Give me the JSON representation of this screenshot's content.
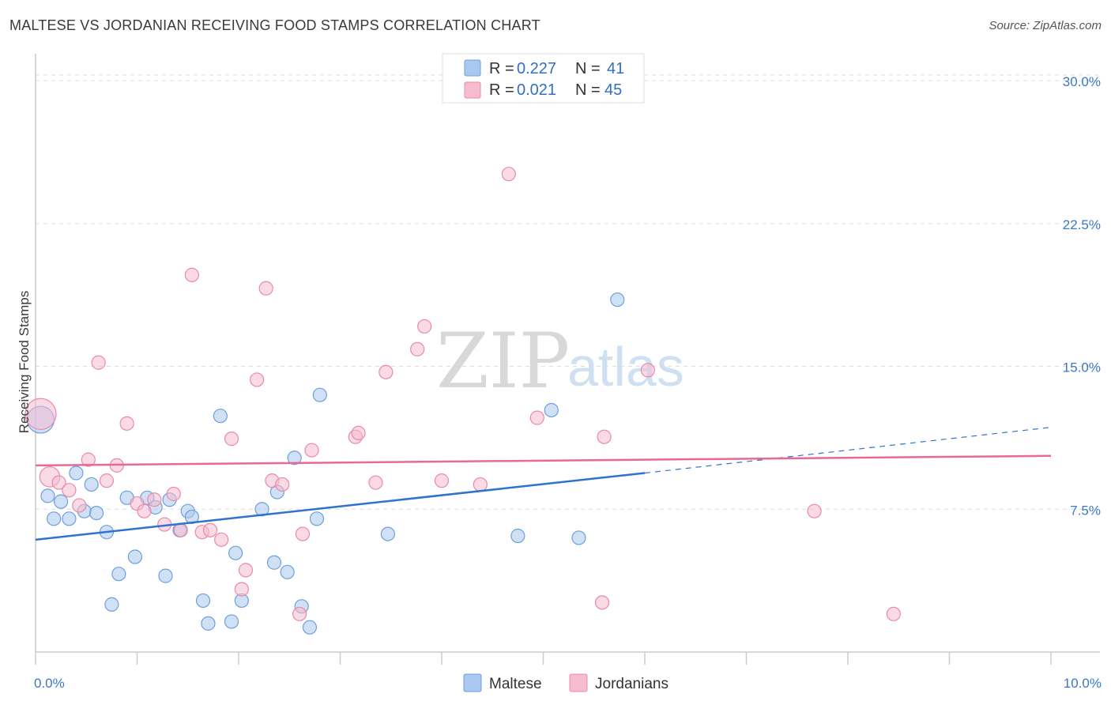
{
  "title": "MALTESE VS JORDANIAN RECEIVING FOOD STAMPS CORRELATION CHART",
  "source": "Source: ZipAtlas.com",
  "watermark": {
    "zip": "ZIP",
    "atlas": "atlas"
  },
  "colors": {
    "maltese_fill": "#a9c8ef",
    "maltese_stroke": "#6e9fdc",
    "maltese_line": "#2f73d0",
    "jordanian_fill": "#f6bccd",
    "jordanian_stroke": "#e98aa8",
    "jordanian_line": "#e86a93",
    "tick_text": "#3b78c6",
    "grid": "#dddddd"
  },
  "legend": {
    "rows": [
      {
        "r_label": "R =",
        "r_value": "0.227",
        "n_label": "N =",
        "n_value": "41"
      },
      {
        "r_label": "R =",
        "r_value": "0.021",
        "n_label": "N =",
        "n_value": "45"
      }
    ]
  },
  "bottom_legend": {
    "maltese": "Maltese",
    "jordanians": "Jordanians"
  },
  "chart_data": {
    "type": "scatter",
    "title": "MALTESE VS JORDANIAN RECEIVING FOOD STAMPS CORRELATION CHART",
    "xlabel": "",
    "ylabel": "Receiving Food Stamps",
    "xlim": [
      0,
      10
    ],
    "ylim": [
      0,
      31
    ],
    "x_tick_labels": [
      {
        "value": 0,
        "label": "0.0%"
      },
      {
        "value": 10,
        "label": "10.0%"
      }
    ],
    "y_tick_labels": [
      {
        "value": 7.5,
        "label": "7.5%"
      },
      {
        "value": 15,
        "label": "15.0%"
      },
      {
        "value": 22.5,
        "label": "22.5%"
      },
      {
        "value": 30,
        "label": "30.0%"
      }
    ],
    "series": [
      {
        "name": "Maltese",
        "r": 0.227,
        "n": 41,
        "trend": {
          "x0": 0,
          "y0": 5.9,
          "x1": 6.0,
          "y1": 9.4,
          "dash_x1": 10,
          "dash_y1": 11.8
        },
        "points": [
          [
            0.05,
            12.2,
            2.0
          ],
          [
            0.12,
            8.2,
            1
          ],
          [
            0.18,
            7.0,
            1
          ],
          [
            0.25,
            7.9,
            1
          ],
          [
            0.33,
            7.0,
            1
          ],
          [
            0.4,
            9.4,
            1
          ],
          [
            0.48,
            7.4,
            1
          ],
          [
            0.55,
            8.8,
            1
          ],
          [
            0.6,
            7.3,
            1
          ],
          [
            0.7,
            6.3,
            1
          ],
          [
            0.75,
            2.5,
            1
          ],
          [
            0.82,
            4.1,
            1
          ],
          [
            0.9,
            8.1,
            1
          ],
          [
            0.98,
            5.0,
            1
          ],
          [
            1.1,
            8.1,
            1
          ],
          [
            1.18,
            7.6,
            1
          ],
          [
            1.28,
            4.0,
            1
          ],
          [
            1.32,
            8.0,
            1
          ],
          [
            1.42,
            6.4,
            1
          ],
          [
            1.5,
            7.4,
            1
          ],
          [
            1.54,
            7.1,
            1
          ],
          [
            1.65,
            2.7,
            1
          ],
          [
            1.7,
            1.5,
            1
          ],
          [
            1.82,
            12.4,
            1
          ],
          [
            1.93,
            1.6,
            1
          ],
          [
            1.97,
            5.2,
            1
          ],
          [
            2.03,
            2.7,
            1
          ],
          [
            2.23,
            7.5,
            1
          ],
          [
            2.35,
            4.7,
            1
          ],
          [
            2.38,
            8.4,
            1
          ],
          [
            2.48,
            4.2,
            1
          ],
          [
            2.55,
            10.2,
            1
          ],
          [
            2.62,
            2.4,
            1
          ],
          [
            2.7,
            1.3,
            1
          ],
          [
            2.77,
            7.0,
            1
          ],
          [
            2.8,
            13.5,
            1
          ],
          [
            3.47,
            6.2,
            1
          ],
          [
            4.75,
            6.1,
            1
          ],
          [
            5.08,
            12.7,
            1
          ],
          [
            5.35,
            6.0,
            1
          ],
          [
            5.73,
            18.5,
            1
          ]
        ]
      },
      {
        "name": "Jordanians",
        "r": 0.021,
        "n": 45,
        "trend": {
          "x0": 0,
          "y0": 9.8,
          "x1": 10,
          "y1": 10.3
        },
        "points": [
          [
            0.05,
            12.5,
            2.3
          ],
          [
            0.14,
            9.2,
            1.5
          ],
          [
            0.23,
            8.9,
            1
          ],
          [
            0.33,
            8.5,
            1
          ],
          [
            0.43,
            7.7,
            1
          ],
          [
            0.52,
            10.1,
            1
          ],
          [
            0.62,
            15.2,
            1
          ],
          [
            0.7,
            9.0,
            1
          ],
          [
            0.8,
            9.8,
            1
          ],
          [
            0.9,
            12.0,
            1
          ],
          [
            1.0,
            7.8,
            1
          ],
          [
            1.07,
            7.4,
            1
          ],
          [
            1.17,
            8.0,
            1
          ],
          [
            1.27,
            6.7,
            1
          ],
          [
            1.36,
            8.3,
            1
          ],
          [
            1.43,
            6.4,
            1
          ],
          [
            1.54,
            19.8,
            1
          ],
          [
            1.64,
            6.3,
            1
          ],
          [
            1.72,
            6.4,
            1
          ],
          [
            1.83,
            5.9,
            1
          ],
          [
            1.93,
            11.2,
            1
          ],
          [
            2.03,
            3.3,
            1
          ],
          [
            2.07,
            4.3,
            1
          ],
          [
            2.18,
            14.3,
            1
          ],
          [
            2.27,
            19.1,
            1
          ],
          [
            2.33,
            9.0,
            1
          ],
          [
            2.43,
            8.8,
            1
          ],
          [
            2.6,
            2.0,
            1
          ],
          [
            2.63,
            6.2,
            1
          ],
          [
            2.72,
            10.6,
            1
          ],
          [
            3.15,
            11.3,
            1
          ],
          [
            3.18,
            11.5,
            1
          ],
          [
            3.35,
            8.9,
            1
          ],
          [
            3.45,
            14.7,
            1
          ],
          [
            3.76,
            15.9,
            1
          ],
          [
            3.83,
            17.1,
            1
          ],
          [
            4.0,
            9.0,
            1
          ],
          [
            4.38,
            8.8,
            1
          ],
          [
            4.66,
            25.1,
            1
          ],
          [
            4.94,
            12.3,
            1
          ],
          [
            5.6,
            11.3,
            1
          ],
          [
            5.58,
            2.6,
            1
          ],
          [
            6.03,
            14.8,
            1
          ],
          [
            7.67,
            7.4,
            1
          ],
          [
            8.45,
            2.0,
            1
          ]
        ]
      }
    ]
  }
}
